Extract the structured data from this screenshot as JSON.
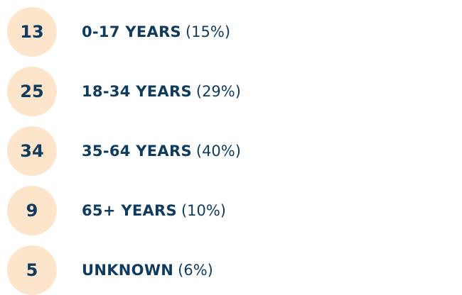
{
  "items": [
    {
      "count": "13",
      "label": "0-17 YEARS",
      "percent": "(15%)"
    },
    {
      "count": "25",
      "label": "18-34 YEARS",
      "percent": "(29%)"
    },
    {
      "count": "34",
      "label": "35-64 YEARS",
      "percent": "(40%)"
    },
    {
      "count": "9",
      "label": "65+ YEARS",
      "percent": "(10%)"
    },
    {
      "count": "5",
      "label": "UNKNOWN",
      "percent": "(6%)"
    }
  ]
}
